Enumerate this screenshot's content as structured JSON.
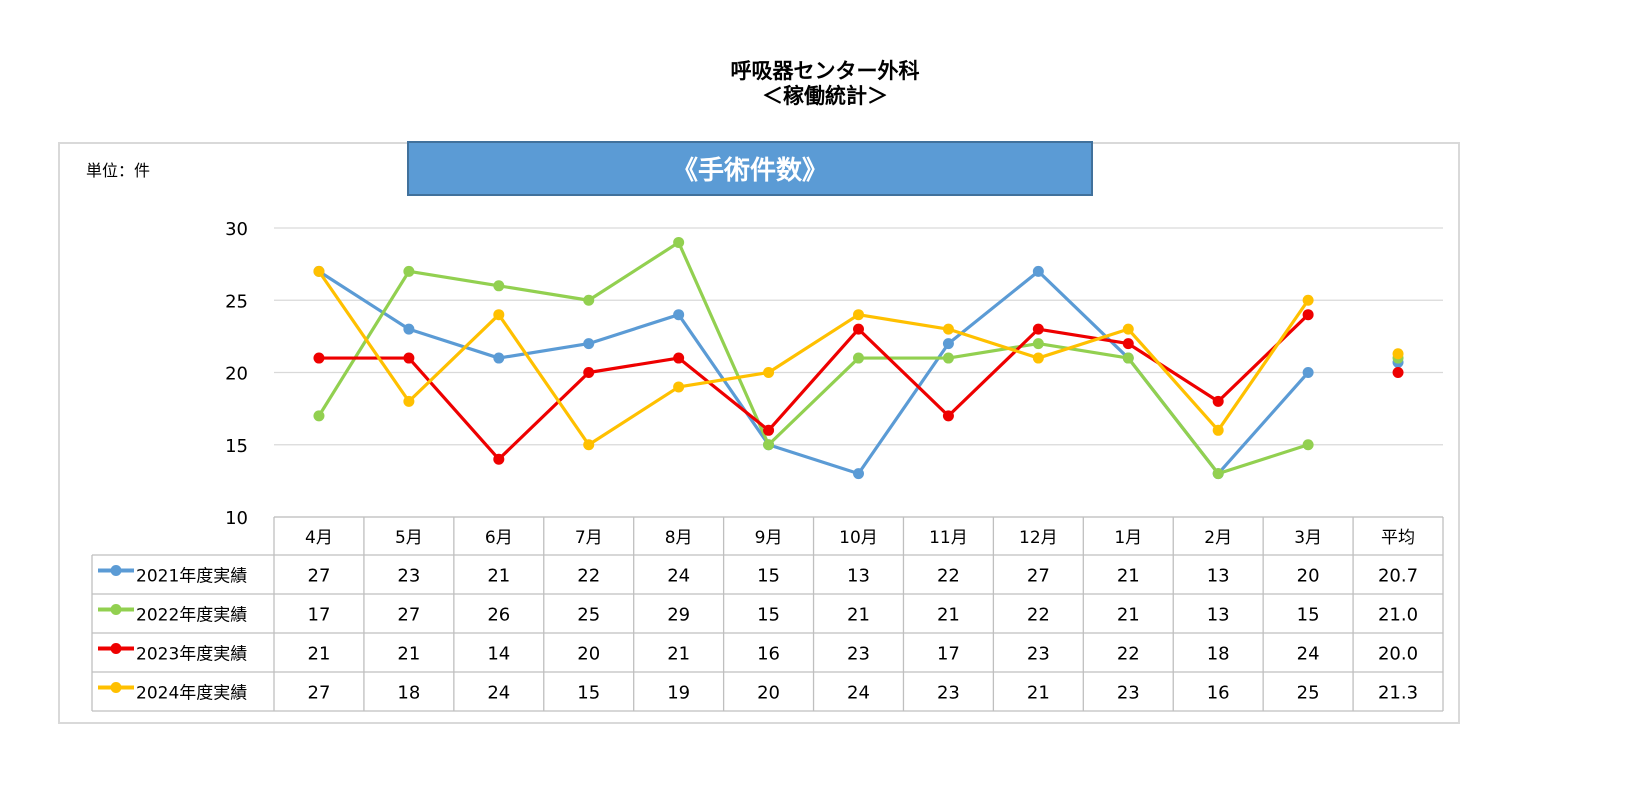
{
  "title_line1": "呼吸器センター外科",
  "title_line2": "＜稼働統計＞",
  "unit_label": "単位：件",
  "banner_text": "《手術件数》",
  "colors": {
    "2021年度実績": "#5b9bd5",
    "2022年度実績": "#92d050",
    "2023年度実績": "#ee0000",
    "2024年度実績": "#ffc000"
  },
  "chart_data": {
    "type": "line",
    "title": "《手術件数》",
    "ylabel": "単位：件",
    "xlabel": "",
    "ylim": [
      10,
      30
    ],
    "yticks": [
      10,
      15,
      20,
      25,
      30
    ],
    "grid": true,
    "legend": "data-table-left",
    "categories": [
      "4月",
      "5月",
      "6月",
      "7月",
      "8月",
      "9月",
      "10月",
      "11月",
      "12月",
      "1月",
      "2月",
      "3月",
      "平均"
    ],
    "series": [
      {
        "name": "2021年度実績",
        "values": [
          27,
          23,
          21,
          22,
          24,
          15,
          13,
          22,
          27,
          21,
          13,
          20,
          20.7
        ],
        "table": [
          "27",
          "23",
          "21",
          "22",
          "24",
          "15",
          "13",
          "22",
          "27",
          "21",
          "13",
          "20",
          "20.7"
        ]
      },
      {
        "name": "2022年度実績",
        "values": [
          17,
          27,
          26,
          25,
          29,
          15,
          21,
          21,
          22,
          21,
          13,
          15,
          21.0
        ],
        "table": [
          "17",
          "27",
          "26",
          "25",
          "29",
          "15",
          "21",
          "21",
          "22",
          "21",
          "13",
          "15",
          "21.0"
        ]
      },
      {
        "name": "2023年度実績",
        "values": [
          21,
          21,
          14,
          20,
          21,
          16,
          23,
          17,
          23,
          22,
          18,
          24,
          20.0
        ],
        "table": [
          "21",
          "21",
          "14",
          "20",
          "21",
          "16",
          "23",
          "17",
          "23",
          "22",
          "18",
          "24",
          "20.0"
        ]
      },
      {
        "name": "2024年度実績",
        "values": [
          27,
          18,
          24,
          15,
          19,
          20,
          24,
          23,
          21,
          23,
          16,
          25,
          21.3
        ],
        "table": [
          "27",
          "18",
          "24",
          "15",
          "19",
          "20",
          "24",
          "23",
          "21",
          "23",
          "16",
          "25",
          "21.3"
        ]
      }
    ]
  }
}
